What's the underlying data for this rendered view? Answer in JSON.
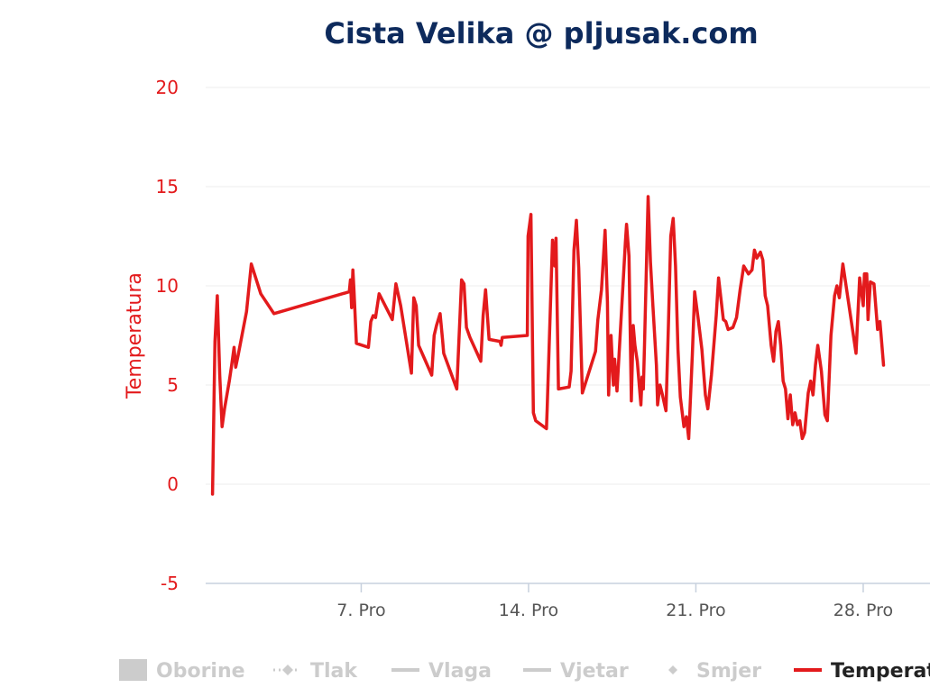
{
  "chart_data": {
    "type": "line",
    "title": "Cista Velika @ pljusak.com",
    "ylabel": "Temperatura",
    "ylim": [
      -5,
      20
    ],
    "yticks": [
      "-5",
      "0",
      "5",
      "10",
      "15",
      "20"
    ],
    "xlim": [
      0.5,
      31.8
    ],
    "xticks": [
      {
        "day": 7,
        "label": "7. Pro"
      },
      {
        "day": 14,
        "label": "14. Pro"
      },
      {
        "day": 21,
        "label": "21. Pro"
      },
      {
        "day": 28,
        "label": "28. Pro"
      }
    ],
    "grid": true,
    "legend_position": "bottom",
    "legend": [
      {
        "name": "Oborine",
        "symbol": "square",
        "active": false
      },
      {
        "name": "Tlak",
        "symbol": "dashed-diamond",
        "active": false
      },
      {
        "name": "Vlaga",
        "symbol": "line",
        "active": false
      },
      {
        "name": "Vjetar",
        "symbol": "line",
        "active": false
      },
      {
        "name": "Smjer",
        "symbol": "diamond",
        "active": false
      },
      {
        "name": "Temperat",
        "symbol": "line",
        "active": true
      }
    ],
    "series": [
      {
        "name": "Temperatura",
        "color": "#e31a1c",
        "points": [
          [
            0.78,
            -0.5
          ],
          [
            0.88,
            7.2
          ],
          [
            0.98,
            9.5
          ],
          [
            1.08,
            5.5
          ],
          [
            1.18,
            2.9
          ],
          [
            1.28,
            3.8
          ],
          [
            1.48,
            5.2
          ],
          [
            1.58,
            6.0
          ],
          [
            1.68,
            6.9
          ],
          [
            1.75,
            5.9
          ],
          [
            1.85,
            6.5
          ],
          [
            2.2,
            8.7
          ],
          [
            2.4,
            11.1
          ],
          [
            2.8,
            9.6
          ],
          [
            3.35,
            8.6
          ],
          [
            6.5,
            9.7
          ],
          [
            6.55,
            10.3
          ],
          [
            6.6,
            8.9
          ],
          [
            6.65,
            10.8
          ],
          [
            6.7,
            9.7
          ],
          [
            6.8,
            7.1
          ],
          [
            7.3,
            6.9
          ],
          [
            7.4,
            8.2
          ],
          [
            7.5,
            8.5
          ],
          [
            7.6,
            8.4
          ],
          [
            7.75,
            9.6
          ],
          [
            8.3,
            8.3
          ],
          [
            8.45,
            10.1
          ],
          [
            8.65,
            9.0
          ],
          [
            9.1,
            5.6
          ],
          [
            9.2,
            9.4
          ],
          [
            9.3,
            9.0
          ],
          [
            9.4,
            7.0
          ],
          [
            9.95,
            5.5
          ],
          [
            10.05,
            7.5
          ],
          [
            10.15,
            8.0
          ],
          [
            10.3,
            8.6
          ],
          [
            10.4,
            7.3
          ],
          [
            10.45,
            6.6
          ],
          [
            11.0,
            4.8
          ],
          [
            11.1,
            7.6
          ],
          [
            11.2,
            10.3
          ],
          [
            11.3,
            10.1
          ],
          [
            11.4,
            7.9
          ],
          [
            11.55,
            7.4
          ],
          [
            12.0,
            6.2
          ],
          [
            12.1,
            8.5
          ],
          [
            12.2,
            9.8
          ],
          [
            12.35,
            7.3
          ],
          [
            12.8,
            7.2
          ],
          [
            12.85,
            7.0
          ],
          [
            12.9,
            7.4
          ],
          [
            13.95,
            7.5
          ],
          [
            13.98,
            12.5
          ],
          [
            14.1,
            13.6
          ],
          [
            14.2,
            3.6
          ],
          [
            14.3,
            3.2
          ],
          [
            14.75,
            2.8
          ],
          [
            14.78,
            3.8
          ],
          [
            15.0,
            12.3
          ],
          [
            15.1,
            11.0
          ],
          [
            15.15,
            12.4
          ],
          [
            15.25,
            4.8
          ],
          [
            15.7,
            4.9
          ],
          [
            15.78,
            5.7
          ],
          [
            15.9,
            11.8
          ],
          [
            16.0,
            13.3
          ],
          [
            16.1,
            10.9
          ],
          [
            16.25,
            4.6
          ],
          [
            16.8,
            6.7
          ],
          [
            16.9,
            8.3
          ],
          [
            17.05,
            9.8
          ],
          [
            17.2,
            12.8
          ],
          [
            17.3,
            9.2
          ],
          [
            17.35,
            4.5
          ],
          [
            17.45,
            7.5
          ],
          [
            17.55,
            5.0
          ],
          [
            17.6,
            6.3
          ],
          [
            17.7,
            4.7
          ],
          [
            17.95,
            10.0
          ],
          [
            18.05,
            12.2
          ],
          [
            18.1,
            13.1
          ],
          [
            18.2,
            11.5
          ],
          [
            18.3,
            4.2
          ],
          [
            18.38,
            8.0
          ],
          [
            18.45,
            7.0
          ],
          [
            18.55,
            6.2
          ],
          [
            18.7,
            4.0
          ],
          [
            18.75,
            5.4
          ],
          [
            18.8,
            4.8
          ],
          [
            18.85,
            7.0
          ],
          [
            19.0,
            14.5
          ],
          [
            19.1,
            11.2
          ],
          [
            19.2,
            9.0
          ],
          [
            19.35,
            6.0
          ],
          [
            19.4,
            4.0
          ],
          [
            19.5,
            5.0
          ],
          [
            19.6,
            4.5
          ],
          [
            19.75,
            3.7
          ],
          [
            19.85,
            8.0
          ],
          [
            19.95,
            12.5
          ],
          [
            20.05,
            13.4
          ],
          [
            20.15,
            11.0
          ],
          [
            20.25,
            6.8
          ],
          [
            20.35,
            4.4
          ],
          [
            20.5,
            2.9
          ],
          [
            20.6,
            3.4
          ],
          [
            20.7,
            2.3
          ],
          [
            20.85,
            6.5
          ],
          [
            20.95,
            9.7
          ],
          [
            21.1,
            8.3
          ],
          [
            21.25,
            6.8
          ],
          [
            21.4,
            4.5
          ],
          [
            21.5,
            3.8
          ],
          [
            21.65,
            5.5
          ],
          [
            21.85,
            8.5
          ],
          [
            21.95,
            10.4
          ],
          [
            22.15,
            8.3
          ],
          [
            22.25,
            8.2
          ],
          [
            22.35,
            7.8
          ],
          [
            22.55,
            7.9
          ],
          [
            22.7,
            8.4
          ],
          [
            22.85,
            9.8
          ],
          [
            23.0,
            11.0
          ],
          [
            23.2,
            10.6
          ],
          [
            23.35,
            10.8
          ],
          [
            23.45,
            11.8
          ],
          [
            23.55,
            11.4
          ],
          [
            23.7,
            11.7
          ],
          [
            23.8,
            11.3
          ],
          [
            23.9,
            9.5
          ],
          [
            24.0,
            9.0
          ],
          [
            24.15,
            7.0
          ],
          [
            24.25,
            6.2
          ],
          [
            24.35,
            7.7
          ],
          [
            24.45,
            8.2
          ],
          [
            24.55,
            7.0
          ],
          [
            24.65,
            5.2
          ],
          [
            24.75,
            4.8
          ],
          [
            24.85,
            3.3
          ],
          [
            24.95,
            4.5
          ],
          [
            25.05,
            3.0
          ],
          [
            25.15,
            3.6
          ],
          [
            25.25,
            3.0
          ],
          [
            25.35,
            3.2
          ],
          [
            25.45,
            2.3
          ],
          [
            25.55,
            2.6
          ],
          [
            25.7,
            4.6
          ],
          [
            25.8,
            5.2
          ],
          [
            25.9,
            4.5
          ],
          [
            26.0,
            6.0
          ],
          [
            26.1,
            7.0
          ],
          [
            26.25,
            5.7
          ],
          [
            26.4,
            3.5
          ],
          [
            26.5,
            3.2
          ],
          [
            26.65,
            7.5
          ],
          [
            26.8,
            9.5
          ],
          [
            26.9,
            10.0
          ],
          [
            27.0,
            9.4
          ],
          [
            27.15,
            11.1
          ],
          [
            27.7,
            6.6
          ],
          [
            27.85,
            10.4
          ],
          [
            28.0,
            9.0
          ],
          [
            28.05,
            10.6
          ],
          [
            28.15,
            10.6
          ],
          [
            28.2,
            8.3
          ],
          [
            28.3,
            10.2
          ],
          [
            28.45,
            10.1
          ],
          [
            28.6,
            7.8
          ],
          [
            28.7,
            8.2
          ],
          [
            28.75,
            7.5
          ],
          [
            28.85,
            6.0
          ]
        ]
      }
    ]
  }
}
